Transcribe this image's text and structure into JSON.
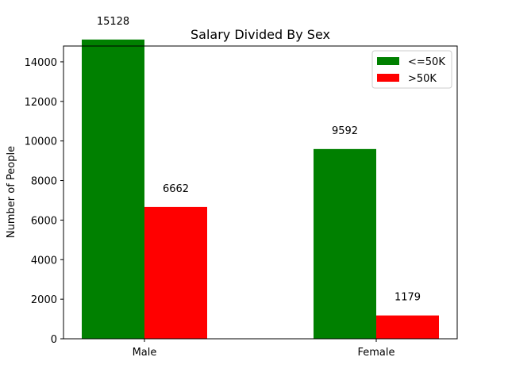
{
  "chart_data": {
    "type": "bar",
    "title": "Salary Divided By Sex",
    "xlabel": "",
    "ylabel": "Number of People",
    "categories": [
      "Male",
      "Female"
    ],
    "series": [
      {
        "name": "<=50K",
        "color": "#008000",
        "values": [
          15128,
          9592
        ]
      },
      {
        "name": ">50K",
        "color": "#ff0000",
        "values": [
          6662,
          1179
        ]
      }
    ],
    "ylim": [
      0,
      14800
    ],
    "yticks": [
      0,
      2000,
      4000,
      6000,
      8000,
      10000,
      12000,
      14000
    ],
    "grid": false,
    "legend_position": "top-right"
  }
}
